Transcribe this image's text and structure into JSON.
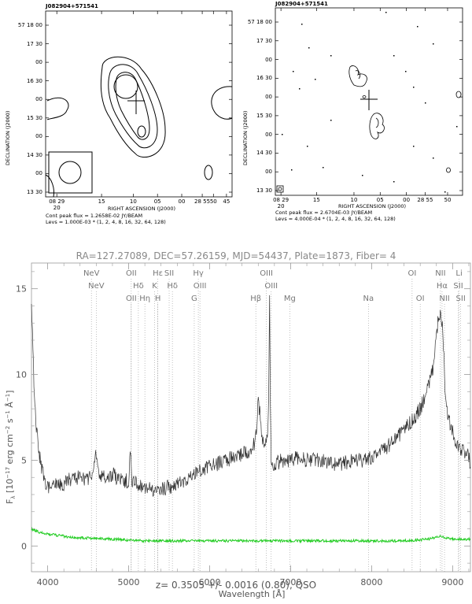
{
  "radio_maps": [
    {
      "title": "J082904+571541",
      "dec_ticks": [
        "57 18 00",
        "17 30",
        "00",
        "16 30",
        "00",
        "15 30",
        "00",
        "14 30",
        "00",
        "13 30"
      ],
      "ra_ticks": [
        "08 29 20",
        "15",
        "10",
        "05",
        "00",
        "28 55",
        "50",
        "45"
      ],
      "xlabel": "RIGHT ASCENSION (J2000)",
      "ylabel": "DECLINATION (J2000)",
      "peak_flux": "Cont peak flux = 1.2658E-02 JY/BEAM",
      "levels": "Levs = 1.000E-03 * (1, 2, 4, 8, 16, 32, 64, 128)"
    },
    {
      "title": "J082904+571541",
      "dec_ticks": [
        "57 18 00",
        "17 30",
        "00",
        "16 30",
        "00",
        "15 30",
        "00",
        "14 30",
        "00",
        "13 30"
      ],
      "ra_ticks": [
        "08 29 20",
        "15",
        "10",
        "05",
        "00",
        "28 55",
        "50"
      ],
      "xlabel": "RIGHT ASCENSION (J2000)",
      "ylabel": "DECLINATION (J2000)",
      "peak_flux": "Cont peak flux = 2.6704E-03 JY/BEAM",
      "levels": "Levs = 4.000E-04 * (1, 2, 4, 8, 16, 32, 64, 128)"
    }
  ],
  "spectrum_meta": "RA=127.27089, DEC=57.26159, MJD=54437, Plate=1873, Fiber=  4",
  "redshift_text": "z=  0.3505 +/-  0.0016 (0.80), QSO",
  "chart_data": {
    "type": "line",
    "xlabel": "Wavelength [Å]",
    "ylabel": "F_λ [10^-17 erg cm^-2 s^-1 Å^-1]",
    "xlim": [
      3800,
      9220
    ],
    "ylim": [
      -1.5,
      16.5
    ],
    "x_ticks": [
      4000,
      5000,
      6000,
      7000,
      8000,
      9000
    ],
    "y_ticks": [
      0,
      5,
      10,
      15
    ],
    "colors": {
      "flux": "#333333",
      "error": "#22cc22",
      "lines": "#999999"
    },
    "series": [
      {
        "role": "flux",
        "x": [
          3800,
          3830,
          3860,
          3900,
          3950,
          4000,
          4100,
          4200,
          4300,
          4400,
          4500,
          4550,
          4600,
          4650,
          4700,
          4800,
          4900,
          5000,
          5020,
          5040,
          5100,
          5200,
          5300,
          5400,
          5500,
          5600,
          5700,
          5800,
          5900,
          6000,
          6100,
          6200,
          6300,
          6400,
          6500,
          6550,
          6570,
          6590,
          6600,
          6620,
          6640,
          6660,
          6680,
          6700,
          6720,
          6730,
          6740,
          6750,
          6760,
          6780,
          6800,
          6900,
          7000,
          7100,
          7200,
          7300,
          7400,
          7500,
          7600,
          7700,
          7800,
          7900,
          8000,
          8100,
          8200,
          8300,
          8400,
          8500,
          8600,
          8650,
          8700,
          8750,
          8780,
          8800,
          8830,
          8860,
          8880,
          8900,
          8920,
          8950,
          9000,
          9050,
          9100,
          9150,
          9200,
          9220
        ],
        "y": [
          14.5,
          9.5,
          7.0,
          5.2,
          4.0,
          3.5,
          3.7,
          3.6,
          4.0,
          4.0,
          3.8,
          4.2,
          5.5,
          4.0,
          4.0,
          4.2,
          3.8,
          3.8,
          5.5,
          3.9,
          3.6,
          3.5,
          3.3,
          3.4,
          3.4,
          3.6,
          3.9,
          4.2,
          4.5,
          4.7,
          4.8,
          5.0,
          5.2,
          5.4,
          5.6,
          6.0,
          6.5,
          7.5,
          8.6,
          7.8,
          6.5,
          6.0,
          5.8,
          6.2,
          7.0,
          9.0,
          14.8,
          8.0,
          5.2,
          4.8,
          4.8,
          5.0,
          5.0,
          5.2,
          5.0,
          5.0,
          5.0,
          4.8,
          4.8,
          4.9,
          5.0,
          5.0,
          5.1,
          5.4,
          5.8,
          6.3,
          6.8,
          7.3,
          8.0,
          8.6,
          9.3,
          10.2,
          11.2,
          12.4,
          13.5,
          13.3,
          12.5,
          10.0,
          8.3,
          7.4,
          6.6,
          6.0,
          5.6,
          5.4,
          5.2,
          4.6
        ]
      },
      {
        "role": "error",
        "x": [
          3800,
          3900,
          4000,
          4300,
          4800,
          5200,
          5600,
          6000,
          6500,
          7000,
          7500,
          8000,
          8400,
          8700,
          8800,
          8850,
          8900,
          9000,
          9100,
          9220
        ],
        "y": [
          1.0,
          0.8,
          0.7,
          0.5,
          0.4,
          0.3,
          0.3,
          0.3,
          0.3,
          0.3,
          0.3,
          0.3,
          0.3,
          0.4,
          0.5,
          0.6,
          0.5,
          0.4,
          0.4,
          0.4
        ]
      }
    ],
    "emission_lines": [
      {
        "label": "NeV",
        "wavelength": 4540,
        "row": 1
      },
      {
        "label": "NeV",
        "wavelength": 4600,
        "row": 2
      },
      {
        "label": "OII",
        "wavelength": 5032,
        "row": 1
      },
      {
        "label": "OII",
        "wavelength": 5032,
        "row": 3
      },
      {
        "label": "Hδ",
        "wavelength": 5120,
        "row": 2
      },
      {
        "label": "Hε",
        "wavelength": 5360,
        "row": 1
      },
      {
        "label": "K",
        "wavelength": 5320,
        "row": 2
      },
      {
        "label": "Hη",
        "wavelength": 5200,
        "row": 3
      },
      {
        "label": "H",
        "wavelength": 5360,
        "row": 3
      },
      {
        "label": "SII",
        "wavelength": 5500,
        "row": 1
      },
      {
        "label": "Hδ",
        "wavelength": 5540,
        "row": 2
      },
      {
        "label": "Hγ",
        "wavelength": 5860,
        "row": 1
      },
      {
        "label": "G",
        "wavelength": 5810,
        "row": 3
      },
      {
        "label": "OIII",
        "wavelength": 5880,
        "row": 2
      },
      {
        "label": "OIII",
        "wavelength": 6700,
        "row": 1
      },
      {
        "label": "OIII",
        "wavelength": 6760,
        "row": 2
      },
      {
        "label": "Hβ",
        "wavelength": 6570,
        "row": 3
      },
      {
        "label": "Mg",
        "wavelength": 6990,
        "row": 3
      },
      {
        "label": "Na",
        "wavelength": 7960,
        "row": 3
      },
      {
        "label": "OI",
        "wavelength": 8500,
        "row": 1
      },
      {
        "label": "OI",
        "wavelength": 8600,
        "row": 3
      },
      {
        "label": "NII",
        "wavelength": 8850,
        "row": 1
      },
      {
        "label": "Hα",
        "wavelength": 8870,
        "row": 2
      },
      {
        "label": "NII",
        "wavelength": 8900,
        "row": 3
      },
      {
        "label": "Li",
        "wavelength": 9080,
        "row": 1
      },
      {
        "label": "SII",
        "wavelength": 9070,
        "row": 2
      },
      {
        "label": "SII",
        "wavelength": 9100,
        "row": 3
      }
    ]
  }
}
